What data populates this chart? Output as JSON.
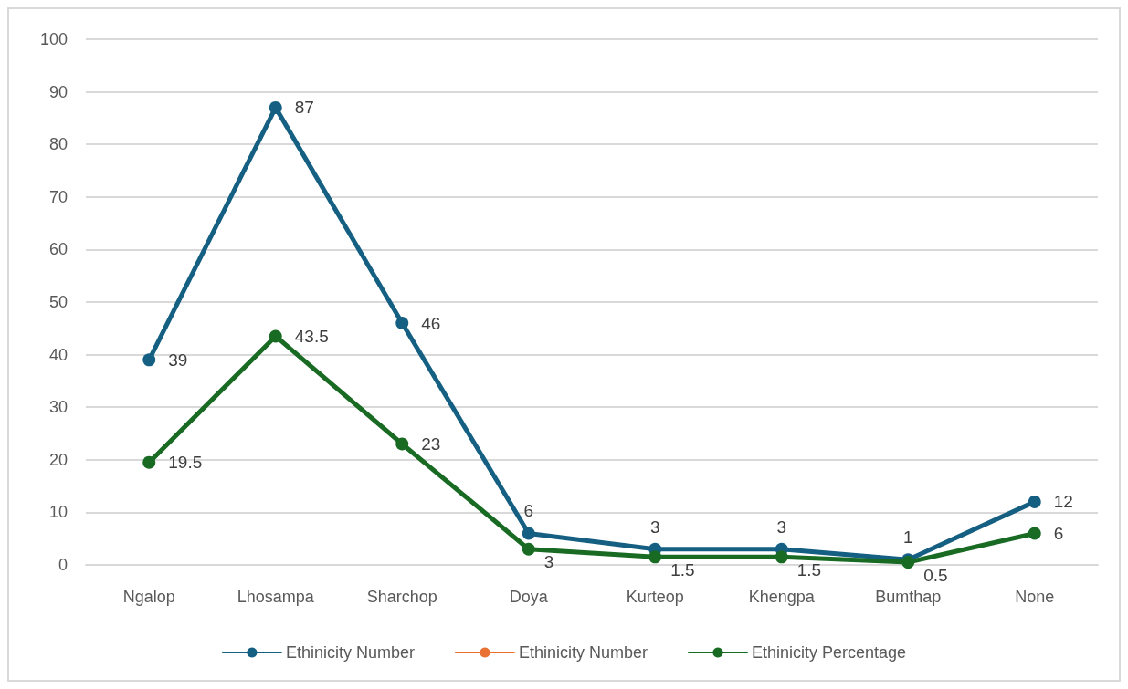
{
  "chart_data": {
    "type": "line",
    "categories": [
      "Ngalop",
      "Lhosampa",
      "Sharchop",
      "Doya",
      "Kurteop",
      "Khengpa",
      "Bumthap",
      "None"
    ],
    "series": [
      {
        "name": "Ethinicity Number",
        "color": "#156082",
        "values": [
          39,
          87,
          46,
          6,
          3,
          3,
          1,
          12
        ]
      },
      {
        "name": "Ethinicity Number",
        "color": "#e97132",
        "values": [
          null,
          null,
          null,
          null,
          null,
          null,
          null,
          null
        ]
      },
      {
        "name": "Ethinicity Percentage",
        "color": "#196b24",
        "values": [
          19.5,
          43.5,
          23,
          3,
          1.5,
          1.5,
          0.5,
          6
        ]
      }
    ],
    "ylim": [
      0,
      100
    ],
    "yticks": [
      0,
      10,
      20,
      30,
      40,
      50,
      60,
      70,
      80,
      90,
      100
    ],
    "grid": "y",
    "legend": "bottom",
    "marker": "circle",
    "line_style": "solid",
    "data_labels": true
  }
}
